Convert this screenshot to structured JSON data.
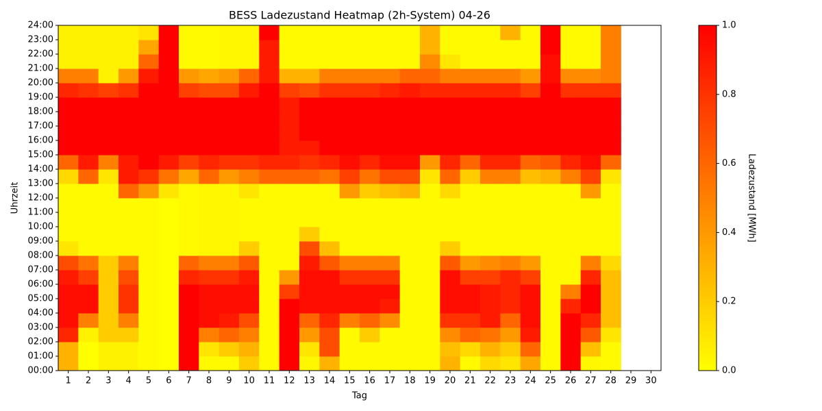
{
  "chart_data": {
    "type": "heatmap",
    "title": "BESS Ladezustand Heatmap (2h-System) 04-26",
    "x_label": "Tag",
    "y_label": "Uhrzeit",
    "colorbar_label": "Ladezustand [MWh]",
    "colors": [
      "#ffff00",
      "#ff0000"
    ],
    "zlim": [
      0,
      1
    ],
    "cbar_ticks": [
      {
        "value": 0,
        "label": "0.0"
      },
      {
        "value": 0.2,
        "label": "0.2"
      },
      {
        "value": 0.4,
        "label": "0.4"
      },
      {
        "value": 0.6,
        "label": "0.6"
      },
      {
        "value": 0.8,
        "label": "0.8"
      },
      {
        "value": 1,
        "label": "1.0"
      }
    ],
    "ylim": [
      0,
      24
    ],
    "yticks": [
      {
        "value": 0,
        "label": "00:00"
      },
      {
        "value": 1,
        "label": "01:00"
      },
      {
        "value": 2,
        "label": "02:00"
      },
      {
        "value": 3,
        "label": "03:00"
      },
      {
        "value": 4,
        "label": "04:00"
      },
      {
        "value": 5,
        "label": "05:00"
      },
      {
        "value": 6,
        "label": "06:00"
      },
      {
        "value": 7,
        "label": "07:00"
      },
      {
        "value": 8,
        "label": "08:00"
      },
      {
        "value": 9,
        "label": "09:00"
      },
      {
        "value": 10,
        "label": "10:00"
      },
      {
        "value": 11,
        "label": "11:00"
      },
      {
        "value": 12,
        "label": "12:00"
      },
      {
        "value": 13,
        "label": "13:00"
      },
      {
        "value": 14,
        "label": "14:00"
      },
      {
        "value": 15,
        "label": "15:00"
      },
      {
        "value": 16,
        "label": "16:00"
      },
      {
        "value": 17,
        "label": "17:00"
      },
      {
        "value": 18,
        "label": "18:00"
      },
      {
        "value": 19,
        "label": "19:00"
      },
      {
        "value": 20,
        "label": "20:00"
      },
      {
        "value": 21,
        "label": "21:00"
      },
      {
        "value": 22,
        "label": "22:00"
      },
      {
        "value": 23,
        "label": "23:00"
      },
      {
        "value": 24,
        "label": "24:00"
      }
    ],
    "categories": [
      "1",
      "2",
      "3",
      "4",
      "5",
      "6",
      "7",
      "8",
      "9",
      "10",
      "11",
      "12",
      "13",
      "14",
      "15",
      "16",
      "17",
      "18",
      "19",
      "20",
      "21",
      "22",
      "23",
      "24",
      "25",
      "26",
      "27",
      "28",
      "29",
      "30"
    ],
    "z": [
      [
        0.3,
        0.3,
        0.85,
        0.95,
        0.95,
        0.95,
        0.9,
        0.7,
        0.1,
        0.02,
        0.02,
        0.02,
        0.02,
        0.15,
        0.6,
        1,
        1,
        1,
        1,
        0.85,
        0.5,
        0.05,
        0.05,
        0.05
      ],
      [
        0,
        0,
        0.05,
        0.5,
        0.95,
        0.95,
        0.75,
        0.55,
        0.02,
        0.02,
        0.02,
        0.02,
        0.02,
        0.6,
        0.9,
        1,
        1,
        1,
        1,
        0.8,
        0.5,
        0.05,
        0.05,
        0.05
      ],
      [
        0.05,
        0.05,
        0.2,
        0.2,
        0.2,
        0.2,
        0.2,
        0.2,
        0.02,
        0.02,
        0.02,
        0.02,
        0.02,
        0.1,
        0.5,
        1,
        1,
        1,
        1,
        0.75,
        0.05,
        0.05,
        0.05,
        0.05
      ],
      [
        0.05,
        0.05,
        0.2,
        0.5,
        0.8,
        0.8,
        0.7,
        0.5,
        0.02,
        0.02,
        0.02,
        0.02,
        0.6,
        0.9,
        0.9,
        1,
        1,
        1,
        1,
        0.8,
        0.4,
        0.05,
        0.05,
        0.05
      ],
      [
        0.02,
        0.02,
        0.02,
        0.02,
        0.02,
        0.02,
        0.02,
        0.02,
        0.02,
        0.02,
        0.02,
        0.02,
        0.4,
        0.8,
        1,
        1,
        1,
        1,
        1,
        1,
        0.9,
        0.6,
        0.35,
        0.1
      ],
      [
        0,
        0,
        0,
        0,
        0,
        0,
        0,
        0,
        0,
        0,
        0,
        0,
        0.1,
        0.55,
        0.9,
        1,
        1,
        1,
        1,
        1,
        1,
        1,
        1,
        1
      ],
      [
        1,
        1,
        1,
        1,
        1,
        1,
        0.85,
        0.6,
        0.02,
        0.02,
        0.02,
        0.02,
        0.02,
        0.35,
        0.75,
        1,
        1,
        1,
        1,
        0.75,
        0.4,
        0.02,
        0.02,
        0.02
      ],
      [
        0.02,
        0.1,
        0.5,
        0.95,
        0.95,
        0.95,
        0.8,
        0.5,
        0.03,
        0.03,
        0.03,
        0.03,
        0.03,
        0.6,
        0.85,
        1,
        1,
        1,
        1,
        0.7,
        0.35,
        0.02,
        0.02,
        0.02
      ],
      [
        0.02,
        0.2,
        0.6,
        0.9,
        0.95,
        0.95,
        0.8,
        0.5,
        0.03,
        0.03,
        0.03,
        0.03,
        0.03,
        0.4,
        0.8,
        1,
        1,
        1,
        1,
        0.7,
        0.4,
        0.03,
        0.03,
        0.03
      ],
      [
        0.2,
        0.3,
        0.5,
        0.7,
        0.95,
        0.95,
        0.9,
        0.65,
        0.2,
        0.02,
        0.02,
        0.02,
        0.1,
        0.5,
        0.8,
        1,
        1,
        1,
        1,
        0.9,
        0.6,
        0.03,
        0.03,
        0.03
      ],
      [
        0.02,
        0.02,
        0.02,
        0.02,
        0.02,
        0.02,
        0.02,
        0.02,
        0.02,
        0.02,
        0.02,
        0.02,
        0.02,
        0.6,
        0.85,
        1,
        1,
        1,
        1,
        1,
        0.9,
        0.9,
        0.9,
        1
      ],
      [
        1,
        1,
        1,
        1,
        1,
        0.75,
        0.4,
        0.02,
        0.02,
        0.02,
        0.02,
        0.02,
        0.02,
        0.6,
        0.85,
        0.9,
        0.9,
        0.9,
        0.9,
        0.75,
        0.3,
        0.02,
        0.02,
        0.02
      ],
      [
        0.03,
        0.1,
        0.4,
        0.6,
        0.95,
        0.95,
        0.95,
        0.9,
        0.7,
        0.2,
        0.02,
        0.02,
        0.02,
        0.6,
        0.8,
        0.9,
        1,
        1,
        1,
        0.7,
        0.3,
        0.02,
        0.02,
        0.02
      ],
      [
        0.3,
        0.7,
        0.7,
        0.85,
        0.95,
        0.95,
        0.95,
        0.65,
        0.25,
        0.02,
        0.02,
        0.02,
        0.02,
        0.55,
        0.85,
        1,
        1,
        1,
        1,
        0.8,
        0.5,
        0.02,
        0.02,
        0.02
      ],
      [
        0.02,
        0.02,
        0.02,
        0.5,
        0.95,
        0.95,
        0.8,
        0.5,
        0.02,
        0.02,
        0.02,
        0.02,
        0.4,
        0.75,
        0.95,
        1,
        1,
        1,
        1,
        0.8,
        0.5,
        0.02,
        0.02,
        0.02
      ],
      [
        0.02,
        0.02,
        0.2,
        0.6,
        0.95,
        0.95,
        0.8,
        0.5,
        0.02,
        0.02,
        0.02,
        0.02,
        0.2,
        0.55,
        0.85,
        1,
        1,
        1,
        1,
        0.8,
        0.5,
        0.02,
        0.02,
        0.02
      ],
      [
        0.02,
        0.02,
        0.02,
        0.45,
        0.9,
        0.95,
        0.8,
        0.5,
        0.02,
        0.02,
        0.02,
        0.02,
        0.25,
        0.7,
        0.95,
        1,
        1,
        1,
        1,
        0.85,
        0.5,
        0.02,
        0.02,
        0.02
      ],
      [
        0.02,
        0.02,
        0.02,
        0.02,
        0.02,
        0.02,
        0.02,
        0.02,
        0.02,
        0.02,
        0.02,
        0.02,
        0.3,
        0.7,
        0.95,
        1,
        1,
        1,
        1,
        0.9,
        0.6,
        0.02,
        0.02,
        0.02
      ],
      [
        0.02,
        0.02,
        0.02,
        0.02,
        0.02,
        0.02,
        0.02,
        0.02,
        0.02,
        0.02,
        0.02,
        0.02,
        0.02,
        0.1,
        0.4,
        1,
        1,
        1,
        1,
        0.85,
        0.6,
        0.45,
        0.3,
        0.3
      ],
      [
        0.3,
        0.25,
        0.45,
        0.8,
        0.95,
        0.95,
        0.95,
        0.65,
        0.2,
        0.02,
        0.02,
        0.02,
        0.15,
        0.6,
        0.85,
        1,
        1,
        1,
        1,
        0.85,
        0.5,
        0.1,
        0.02,
        0.02
      ],
      [
        0.02,
        0.15,
        0.6,
        0.8,
        0.95,
        0.95,
        0.75,
        0.4,
        0.02,
        0.02,
        0.02,
        0.02,
        0.02,
        0.2,
        0.6,
        1,
        1,
        1,
        1,
        0.85,
        0.5,
        0.02,
        0.02,
        0.02
      ],
      [
        0.15,
        0.3,
        0.55,
        0.9,
        0.9,
        0.9,
        0.75,
        0.45,
        0.02,
        0.02,
        0.02,
        0.02,
        0.02,
        0.5,
        0.85,
        1,
        1,
        1,
        1,
        0.85,
        0.5,
        0.02,
        0.02,
        0.02
      ],
      [
        0.1,
        0.2,
        0.4,
        0.6,
        0.85,
        0.85,
        0.85,
        0.5,
        0.02,
        0.02,
        0.02,
        0.02,
        0.02,
        0.5,
        0.85,
        1,
        1,
        1,
        1,
        0.85,
        0.5,
        0.02,
        0.02,
        0.3
      ],
      [
        0.35,
        0.6,
        0.9,
        0.95,
        0.95,
        0.95,
        0.75,
        0.4,
        0.02,
        0.02,
        0.02,
        0.02,
        0.02,
        0.25,
        0.6,
        1,
        1,
        1,
        1,
        0.75,
        0.4,
        0.02,
        0.02,
        0.02
      ],
      [
        0.02,
        0.02,
        0.02,
        0.02,
        0.02,
        0.02,
        0.02,
        0.02,
        0.02,
        0.02,
        0.02,
        0.02,
        0.02,
        0.3,
        0.65,
        1,
        1,
        1,
        1,
        1,
        0.95,
        0.95,
        1,
        1
      ],
      [
        1,
        1,
        1,
        1,
        0.85,
        0.5,
        0.02,
        0.02,
        0.02,
        0.02,
        0.02,
        0.02,
        0.02,
        0.5,
        0.85,
        1,
        1,
        1,
        1,
        0.8,
        0.45,
        0.02,
        0.02,
        0.02
      ],
      [
        0.03,
        0.25,
        0.65,
        0.85,
        1,
        1,
        0.85,
        0.5,
        0.02,
        0.02,
        0.02,
        0.02,
        0.4,
        0.75,
        0.95,
        1,
        1,
        1,
        1,
        0.8,
        0.45,
        0.02,
        0.02,
        0.02
      ],
      [
        0.02,
        0.02,
        0.1,
        0.25,
        0.25,
        0.25,
        0.25,
        0.15,
        0.02,
        0.02,
        0.02,
        0.02,
        0.02,
        0.1,
        0.6,
        1,
        1,
        1,
        1,
        0.8,
        0.5,
        0.5,
        0.5,
        0.5
      ],
      null,
      null
    ]
  }
}
